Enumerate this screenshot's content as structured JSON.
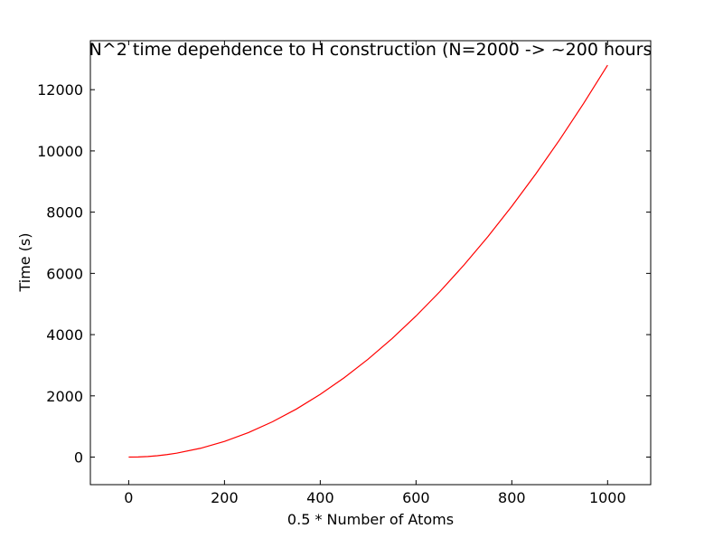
{
  "chart_data": {
    "type": "line",
    "title": "N^2 time dependence to H construction (N=2000 -> ~200 hours",
    "xlabel": "0.5 * Number of Atoms",
    "ylabel": "Time (s)",
    "xlim": [
      -80,
      1090
    ],
    "ylim": [
      -900,
      13600
    ],
    "xticks": [
      0,
      200,
      400,
      600,
      800,
      1000
    ],
    "yticks": [
      0,
      2000,
      4000,
      6000,
      8000,
      10000,
      12000
    ],
    "grid": false,
    "series": [
      {
        "color": "#ff0000",
        "x": [
          0,
          20,
          40,
          60,
          80,
          100,
          150,
          200,
          250,
          300,
          350,
          400,
          450,
          500,
          550,
          600,
          650,
          700,
          750,
          800,
          850,
          900,
          950,
          1000
        ],
        "y": [
          0,
          5,
          20,
          46,
          82,
          128,
          288,
          512,
          800,
          1152,
          1568,
          2048,
          2592,
          3200,
          3872,
          4608,
          5408,
          6272,
          7200,
          8192,
          9248,
          10368,
          11552,
          12800
        ]
      }
    ]
  }
}
